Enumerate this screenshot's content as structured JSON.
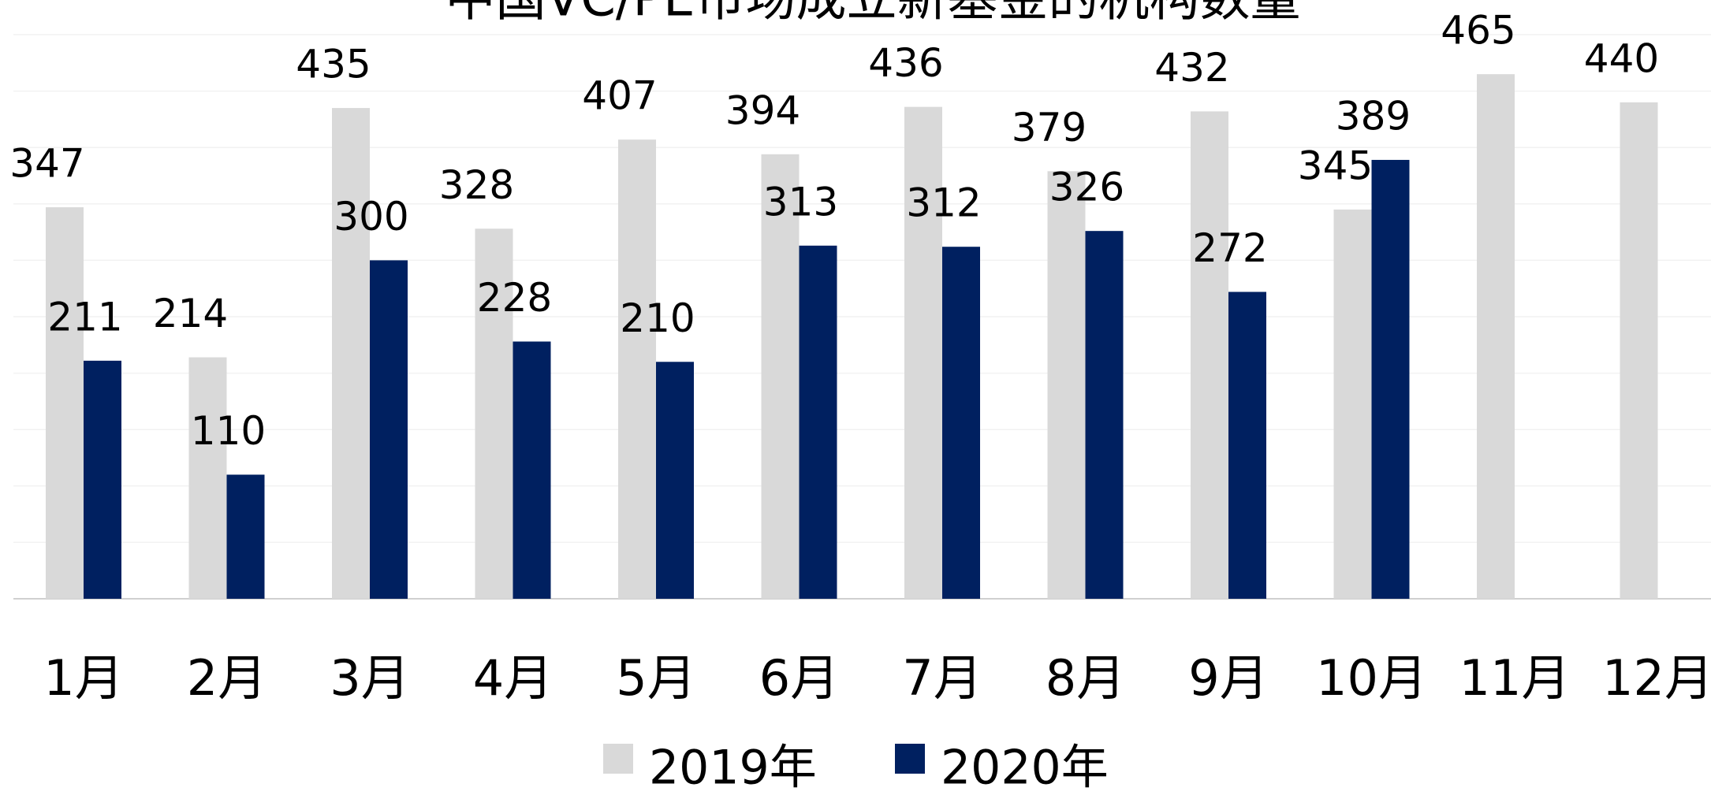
{
  "chart_data": {
    "type": "bar",
    "title": "中国VC/PE市场成立新基金的机构数量",
    "categories": [
      "1月",
      "2月",
      "3月",
      "4月",
      "5月",
      "6月",
      "7月",
      "8月",
      "9月",
      "10月",
      "11月",
      "12月"
    ],
    "series": [
      {
        "name": "2019年",
        "color": "#d9d9d9",
        "values": [
          347,
          214,
          435,
          328,
          407,
          394,
          436,
          379,
          432,
          345,
          465,
          440
        ]
      },
      {
        "name": "2020年",
        "color": "#002060",
        "values": [
          211,
          110,
          300,
          228,
          210,
          313,
          312,
          326,
          272,
          389,
          null,
          null
        ]
      }
    ],
    "ylim": [
      0,
      500
    ],
    "yticks": [
      0,
      50,
      100,
      150,
      200,
      250,
      300,
      350,
      400,
      450,
      500
    ],
    "grid": true
  }
}
